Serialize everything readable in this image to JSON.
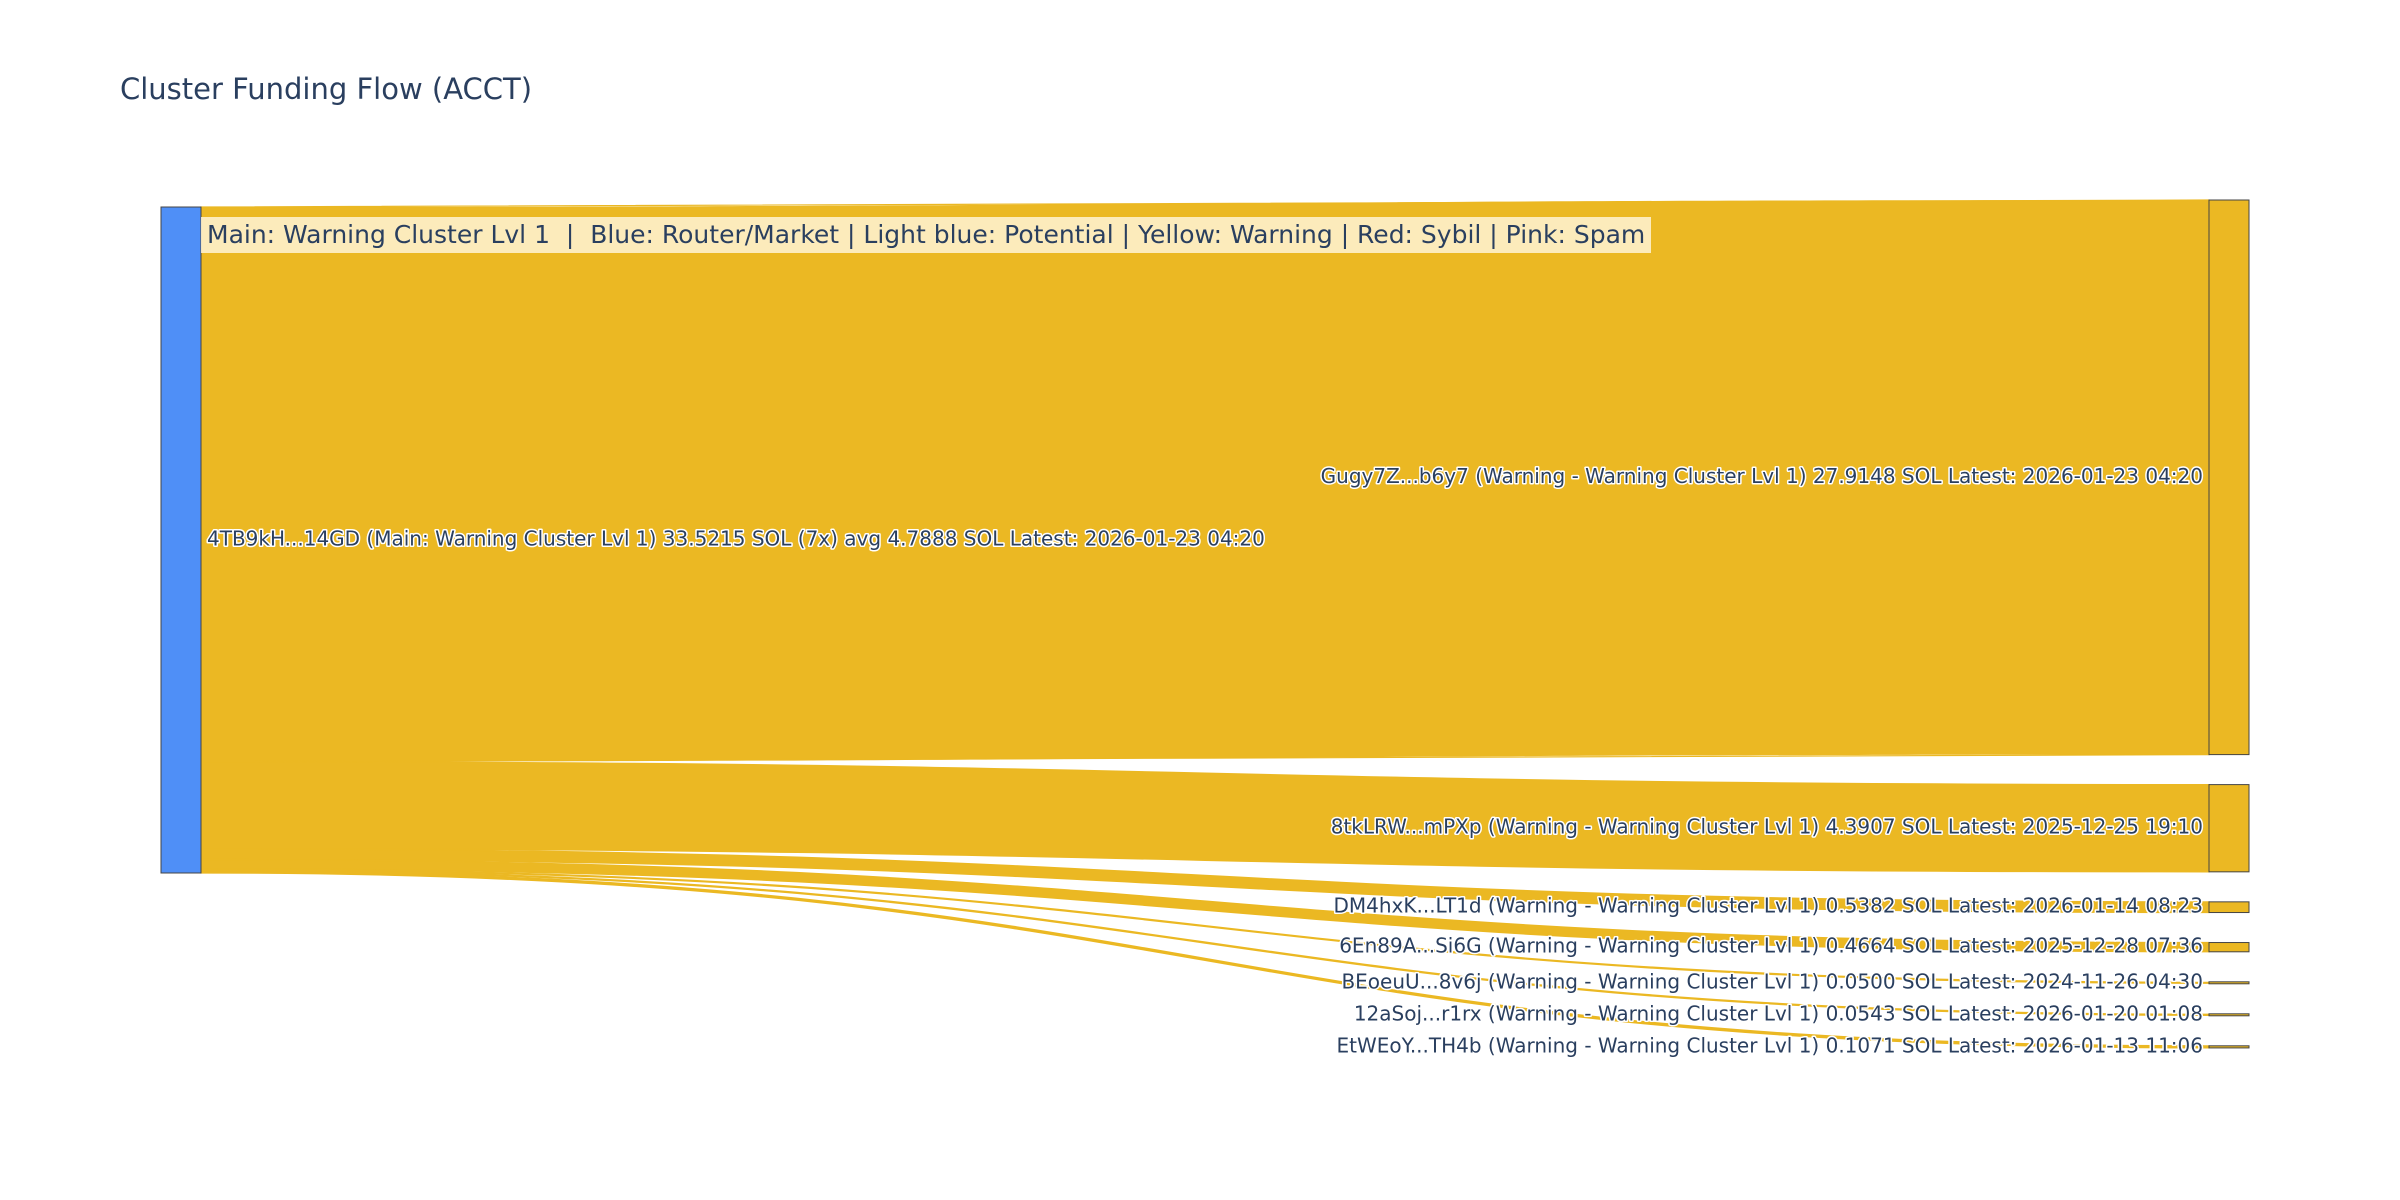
{
  "chart_data": {
    "type": "sankey",
    "title": "Cluster Funding Flow (ACCT)",
    "annotation": "Main: Warning Cluster Lvl 1  |  Blue: Router/Market | Light blue: Potential | Yellow: Warning | Red: Sybil | Pink: Spam",
    "colors": {
      "source_node": "#4f8ff7",
      "target_node": "#ebb823",
      "link": "#ebb823",
      "node_border": "#444444",
      "text": "#2a3f5f"
    },
    "source": {
      "id": "4TB9kH...14GD",
      "label": "4TB9kH...14GD (Main: Warning Cluster Lvl 1) 33.5215 SOL (7x) avg 4.7888 SOL Latest: 2026-01-23 04:20",
      "total_sol": 33.5215,
      "count": 7,
      "avg_sol": 4.7888,
      "latest": "2026-01-23 04:20"
    },
    "targets": [
      {
        "id": "Gugy7Z...b6y7",
        "label": "Gugy7Z...b6y7 (Warning - Warning Cluster Lvl 1) 27.9148 SOL Latest: 2026-01-23 04:20",
        "value": 27.9148,
        "latest": "2026-01-23 04:20"
      },
      {
        "id": "8tkLRW...mPXp",
        "label": "8tkLRW...mPXp (Warning - Warning Cluster Lvl 1) 4.3907 SOL Latest: 2025-12-25 19:10",
        "value": 4.3907,
        "latest": "2025-12-25 19:10"
      },
      {
        "id": "DM4hxK...LT1d",
        "label": "DM4hxK...LT1d (Warning - Warning Cluster Lvl 1) 0.5382 SOL Latest: 2026-01-14 08:23",
        "value": 0.5382,
        "latest": "2026-01-14 08:23"
      },
      {
        "id": "6En89A...Si6G",
        "label": "6En89A...Si6G (Warning - Warning Cluster Lvl 1) 0.4664 SOL Latest: 2025-12-28 07:36",
        "value": 0.4664,
        "latest": "2025-12-28 07:36"
      },
      {
        "id": "BEoeuU...8v6j",
        "label": "BEoeuU...8v6j (Warning - Warning Cluster Lvl 1) 0.0500 SOL Latest: 2024-11-26 04:30",
        "value": 0.05,
        "latest": "2024-11-26 04:30"
      },
      {
        "id": "12aSoj...r1rx",
        "label": "12aSoj...r1rx (Warning - Warning Cluster Lvl 1) 0.0543 SOL Latest: 2026-01-20 01:08",
        "value": 0.0543,
        "latest": "2026-01-20 01:08"
      },
      {
        "id": "EtWEoY...TH4b",
        "label": "EtWEoY...TH4b (Warning - Warning Cluster Lvl 1) 0.1071 SOL Latest: 2026-01-13 11:06",
        "value": 0.1071,
        "latest": "2026-01-13 11:06"
      }
    ]
  }
}
